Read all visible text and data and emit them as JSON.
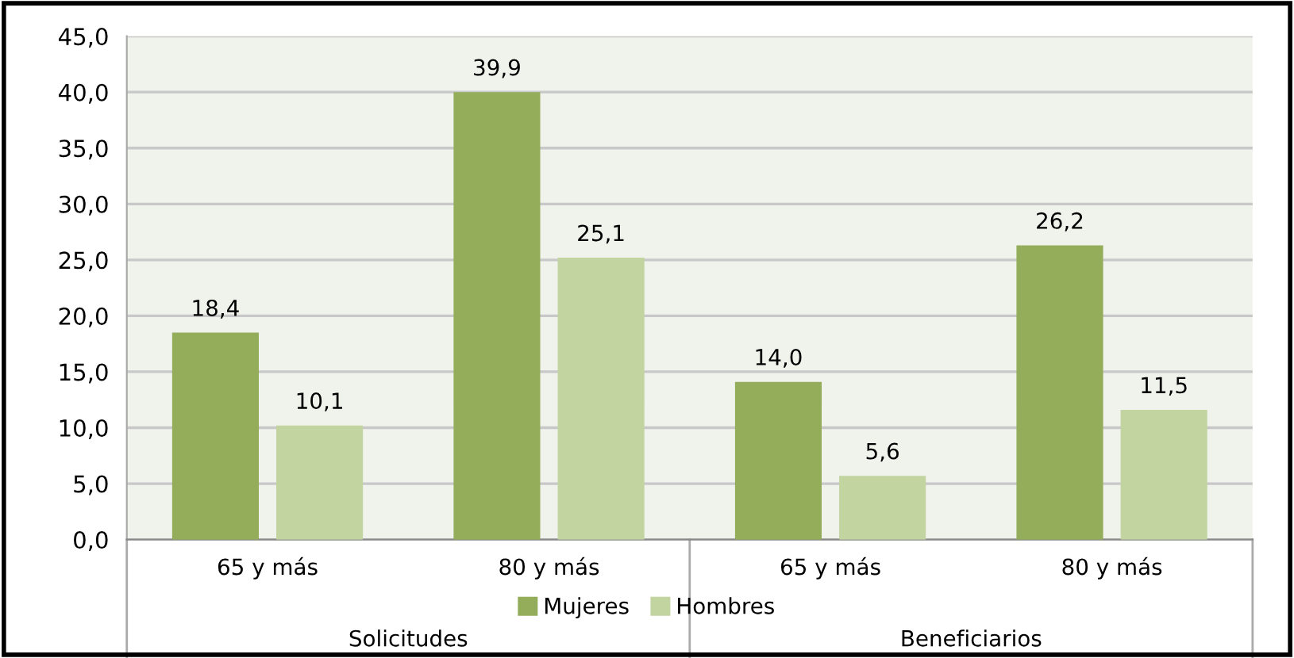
{
  "chart_data": {
    "type": "bar",
    "categories": [
      "65 y más",
      "80 y más",
      "65 y más",
      "80 y más"
    ],
    "series": [
      {
        "name": "Mujeres",
        "color": "#93ad5a",
        "values": [
          18.4,
          39.9,
          14.0,
          26.2
        ],
        "value_labels": [
          "18,4",
          "39,9",
          "14,0",
          "26,2"
        ]
      },
      {
        "name": "Hombres",
        "color": "#c2d4a0",
        "values": [
          10.1,
          25.1,
          5.6,
          11.5
        ],
        "value_labels": [
          "10,1",
          "25,1",
          "5,6",
          "11,5"
        ]
      }
    ],
    "ylim": [
      0,
      45
    ],
    "yticks": [
      {
        "value": 0,
        "label": "0,0"
      },
      {
        "value": 5,
        "label": "5,0"
      },
      {
        "value": 10,
        "label": "10,0"
      },
      {
        "value": 15,
        "label": "15,0"
      },
      {
        "value": 20,
        "label": "20,0"
      },
      {
        "value": 25,
        "label": "25,0"
      },
      {
        "value": 30,
        "label": "30,0"
      },
      {
        "value": 35,
        "label": "35,0"
      },
      {
        "value": 40,
        "label": "40,0"
      },
      {
        "value": 45,
        "label": "45,0"
      }
    ],
    "annotations": [
      "Solicitudes",
      "Beneficiarios"
    ],
    "grid": "y",
    "legend": "bottom"
  }
}
